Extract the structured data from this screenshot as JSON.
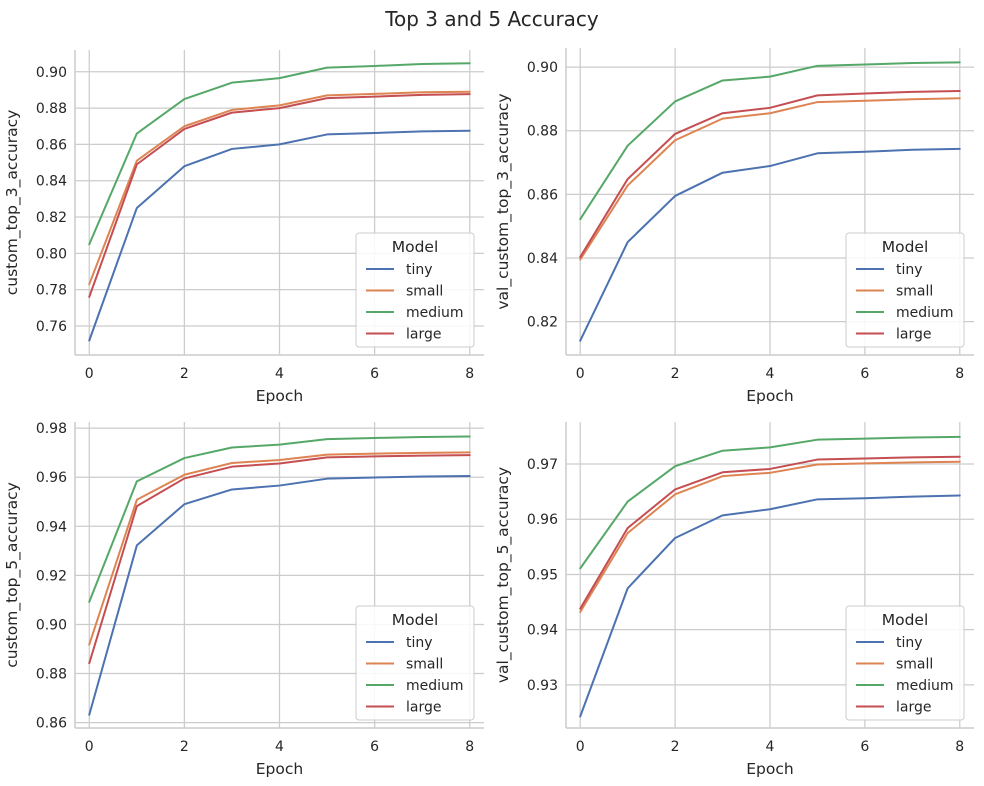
{
  "title": "Top 3 and 5 Accuracy",
  "colors": {
    "tiny": "#4c72b0",
    "small": "#dd8452",
    "medium": "#55a868",
    "large": "#c44e52"
  },
  "chart_data": [
    {
      "type": "line",
      "title": "",
      "xlabel": "Epoch",
      "ylabel": "custom_top_3_accuracy",
      "xlim": [
        -0.3,
        8.3
      ],
      "ylim": [
        0.744,
        0.912
      ],
      "xticks": [
        "0",
        "2",
        "4",
        "6",
        "8"
      ],
      "yticks": [
        "0.76",
        "0.78",
        "0.80",
        "0.82",
        "0.84",
        "0.86",
        "0.88",
        "0.90"
      ],
      "grid": true,
      "legend": {
        "title": "Model",
        "placement": "lower-right"
      },
      "x": [
        0,
        1,
        2,
        3,
        4,
        5,
        6,
        7,
        8
      ],
      "series": [
        {
          "name": "tiny",
          "values": [
            0.752,
            0.825,
            0.848,
            0.8575,
            0.86,
            0.8655,
            0.8663,
            0.8672,
            0.8675
          ]
        },
        {
          "name": "small",
          "values": [
            0.783,
            0.851,
            0.87,
            0.879,
            0.8815,
            0.887,
            0.8878,
            0.8887,
            0.889
          ]
        },
        {
          "name": "medium",
          "values": [
            0.805,
            0.866,
            0.885,
            0.894,
            0.8965,
            0.9023,
            0.9032,
            0.9043,
            0.9047
          ]
        },
        {
          "name": "large",
          "values": [
            0.776,
            0.849,
            0.8685,
            0.8775,
            0.88,
            0.8855,
            0.8863,
            0.8873,
            0.8877
          ]
        }
      ]
    },
    {
      "type": "line",
      "title": "",
      "xlabel": "Epoch",
      "ylabel": "val_custom_top_3_accuracy",
      "xlim": [
        -0.3,
        8.3
      ],
      "ylim": [
        0.8095,
        0.906
      ],
      "xticks": [
        "0",
        "2",
        "4",
        "6",
        "8"
      ],
      "yticks": [
        "0.82",
        "0.84",
        "0.86",
        "0.88",
        "0.90"
      ],
      "grid": true,
      "legend": {
        "title": "Model",
        "placement": "lower-right"
      },
      "x": [
        0,
        1,
        2,
        3,
        4,
        5,
        6,
        7,
        8
      ],
      "series": [
        {
          "name": "tiny",
          "values": [
            0.814,
            0.845,
            0.8595,
            0.8668,
            0.8689,
            0.8729,
            0.8734,
            0.874,
            0.8743
          ]
        },
        {
          "name": "small",
          "values": [
            0.8395,
            0.8628,
            0.877,
            0.8838,
            0.8855,
            0.889,
            0.8894,
            0.8899,
            0.8902
          ]
        },
        {
          "name": "medium",
          "values": [
            0.8522,
            0.8753,
            0.8892,
            0.8958,
            0.897,
            0.9004,
            0.9008,
            0.9013,
            0.9015
          ]
        },
        {
          "name": "large",
          "values": [
            0.8403,
            0.8648,
            0.879,
            0.8855,
            0.8872,
            0.8911,
            0.8917,
            0.8922,
            0.8925
          ]
        }
      ]
    },
    {
      "type": "line",
      "title": "",
      "xlabel": "Epoch",
      "ylabel": "custom_top_5_accuracy",
      "xlim": [
        -0.3,
        8.3
      ],
      "ylim": [
        0.8578,
        0.9825
      ],
      "xticks": [
        "0",
        "2",
        "4",
        "6",
        "8"
      ],
      "yticks": [
        "0.86",
        "0.88",
        "0.90",
        "0.92",
        "0.94",
        "0.96",
        "0.98"
      ],
      "grid": true,
      "legend": {
        "title": "Model",
        "placement": "lower-right"
      },
      "x": [
        0,
        1,
        2,
        3,
        4,
        5,
        6,
        7,
        8
      ],
      "series": [
        {
          "name": "tiny",
          "values": [
            0.8632,
            0.9322,
            0.949,
            0.955,
            0.9566,
            0.9594,
            0.9599,
            0.9603,
            0.9605
          ]
        },
        {
          "name": "small",
          "values": [
            0.8918,
            0.9508,
            0.961,
            0.9658,
            0.967,
            0.9692,
            0.9696,
            0.9699,
            0.9701
          ]
        },
        {
          "name": "medium",
          "values": [
            0.9092,
            0.9583,
            0.9678,
            0.9721,
            0.9733,
            0.9755,
            0.976,
            0.9764,
            0.9766
          ]
        },
        {
          "name": "large",
          "values": [
            0.8842,
            0.9482,
            0.9595,
            0.9643,
            0.9656,
            0.9681,
            0.9685,
            0.9688,
            0.969
          ]
        }
      ]
    },
    {
      "type": "line",
      "title": "",
      "xlabel": "Epoch",
      "ylabel": "val_custom_top_5_accuracy",
      "xlim": [
        -0.3,
        8.3
      ],
      "ylim": [
        0.9222,
        0.9776
      ],
      "xticks": [
        "0",
        "2",
        "4",
        "6",
        "8"
      ],
      "yticks": [
        "0.93",
        "0.94",
        "0.95",
        "0.96",
        "0.97"
      ],
      "grid": true,
      "legend": {
        "title": "Model",
        "placement": "lower-right"
      },
      "x": [
        0,
        1,
        2,
        3,
        4,
        5,
        6,
        7,
        8
      ],
      "series": [
        {
          "name": "tiny",
          "values": [
            0.9243,
            0.9475,
            0.9566,
            0.9607,
            0.9618,
            0.9636,
            0.9638,
            0.9641,
            0.9643
          ]
        },
        {
          "name": "small",
          "values": [
            0.9432,
            0.9575,
            0.9645,
            0.9678,
            0.9684,
            0.9699,
            0.9701,
            0.9703,
            0.9704
          ]
        },
        {
          "name": "medium",
          "values": [
            0.9511,
            0.9632,
            0.9696,
            0.9724,
            0.973,
            0.9744,
            0.9746,
            0.9748,
            0.9749
          ]
        },
        {
          "name": "large",
          "values": [
            0.9438,
            0.9584,
            0.9654,
            0.9685,
            0.9691,
            0.9708,
            0.971,
            0.9712,
            0.9713
          ]
        }
      ]
    }
  ]
}
